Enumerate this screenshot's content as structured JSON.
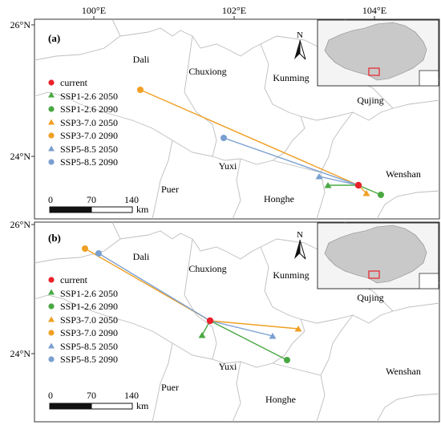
{
  "longitude_labels": [
    "100°E",
    "102°E",
    "104°E"
  ],
  "latitude_labels_a": [
    "26°N",
    "24°N"
  ],
  "latitude_labels_b": [
    "26°N",
    "24°N"
  ],
  "north_letter": "N",
  "scale_unit": "km",
  "scale_ticks": [
    "0",
    "70",
    "140"
  ],
  "colors": {
    "current": "#e8212a",
    "ssp126": "#4aa843",
    "ssp370": "#f0a024",
    "ssp585": "#7a9fd0",
    "border": "#bbbbbb",
    "inset_land": "#c8c8c8",
    "inset_box": "#e8212a"
  },
  "legend": [
    {
      "label": "current",
      "color": "#e8212a",
      "marker": "circle"
    },
    {
      "label": "SSP1-2.6 2050",
      "color": "#4aa843",
      "marker": "triangle"
    },
    {
      "label": "SSP1-2.6 2090",
      "color": "#4aa843",
      "marker": "circle"
    },
    {
      "label": "SSP3-7.0 2050",
      "color": "#f0a024",
      "marker": "triangle"
    },
    {
      "label": "SSP3-7.0 2090",
      "color": "#f0a024",
      "marker": "circle"
    },
    {
      "label": "SSP5-8.5 2050",
      "color": "#7a9fd0",
      "marker": "triangle"
    },
    {
      "label": "SSP5-8.5 2090",
      "color": "#7a9fd0",
      "marker": "circle"
    }
  ],
  "panel_a": {
    "letter": "(a)",
    "regions": [
      "Dali",
      "Chuxiong",
      "Kunming",
      "Qujing",
      "Yuxi",
      "Puer",
      "Honghe",
      "Wenshan"
    ]
  },
  "panel_b": {
    "letter": "(b)",
    "regions": [
      "Dali",
      "Chuxiong",
      "Kunming",
      "Qujing",
      "Yuxi",
      "Puer",
      "Honghe",
      "Wenshan"
    ]
  }
}
